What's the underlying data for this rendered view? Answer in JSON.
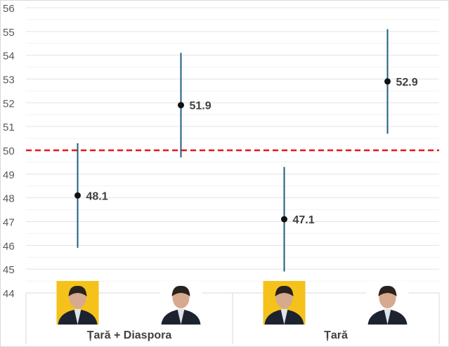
{
  "chart_data": {
    "type": "scatter",
    "title": "",
    "xlabel": "",
    "ylabel": "",
    "ylim": [
      44,
      56
    ],
    "y_ticks": [
      "44",
      "45",
      "46",
      "47",
      "48",
      "49",
      "50",
      "51",
      "52",
      "53",
      "54",
      "55",
      "56"
    ],
    "grid": true,
    "groups": [
      "Țară + Diaspora",
      "Țară"
    ],
    "points": [
      {
        "group": 0,
        "candidate": "yellow-background-portrait",
        "value": 48.1,
        "label": "48.1",
        "low": 45.9,
        "high": 50.3
      },
      {
        "group": 0,
        "candidate": "white-background-portrait",
        "value": 51.9,
        "label": "51.9",
        "low": 49.7,
        "high": 54.1
      },
      {
        "group": 1,
        "candidate": "yellow-background-portrait",
        "value": 47.1,
        "label": "47.1",
        "low": 44.9,
        "high": 49.3
      },
      {
        "group": 1,
        "candidate": "white-background-portrait",
        "value": 52.9,
        "label": "52.9",
        "low": 50.7,
        "high": 55.1
      }
    ],
    "reference_line": {
      "value": 50,
      "style": "dashed"
    },
    "colors": {
      "error_bar": "#1f5f82",
      "point": "#111111",
      "reference": "#e8141a",
      "portrait_bg_1": "#f5c21b",
      "portrait_bg_2": "#ffffff"
    }
  }
}
